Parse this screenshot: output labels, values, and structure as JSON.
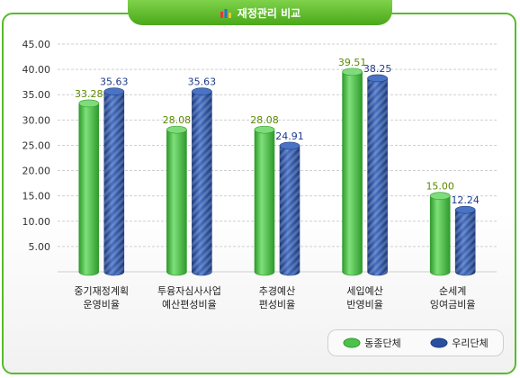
{
  "header": {
    "title": "재정관리 비교",
    "icon": "bar-chart-icon"
  },
  "colors": {
    "green": "#4cc24a",
    "blue": "#2a4f9e",
    "border": "#57bb2a"
  },
  "chart_data": {
    "type": "bar",
    "title": "재정관리 비교",
    "categories": [
      [
        "중기재정계획",
        "운영비율"
      ],
      [
        "투융자심사사업",
        "예산편성비율"
      ],
      [
        "추경예산",
        "편성비율"
      ],
      [
        "세입예산",
        "반영비율"
      ],
      [
        "순세계",
        "잉여금비율"
      ]
    ],
    "series": [
      {
        "name": "동종단체",
        "values": [
          33.28,
          28.08,
          28.08,
          39.51,
          15.0
        ],
        "labels": [
          "33.28",
          "28.08",
          "28.08",
          "39.51",
          "15.00"
        ]
      },
      {
        "name": "우리단체",
        "values": [
          35.63,
          35.63,
          24.91,
          38.25,
          12.24
        ],
        "labels": [
          "35.63",
          "35.63",
          "24.91",
          "38.25",
          "12.24"
        ]
      }
    ],
    "yticks": [
      "45.00",
      "40.00",
      "35.00",
      "30.00",
      "25.00",
      "20.00",
      "15.00",
      "10.00",
      "5.00"
    ],
    "ylim": [
      0,
      45
    ],
    "grid": true,
    "legend": "bottom-right"
  }
}
